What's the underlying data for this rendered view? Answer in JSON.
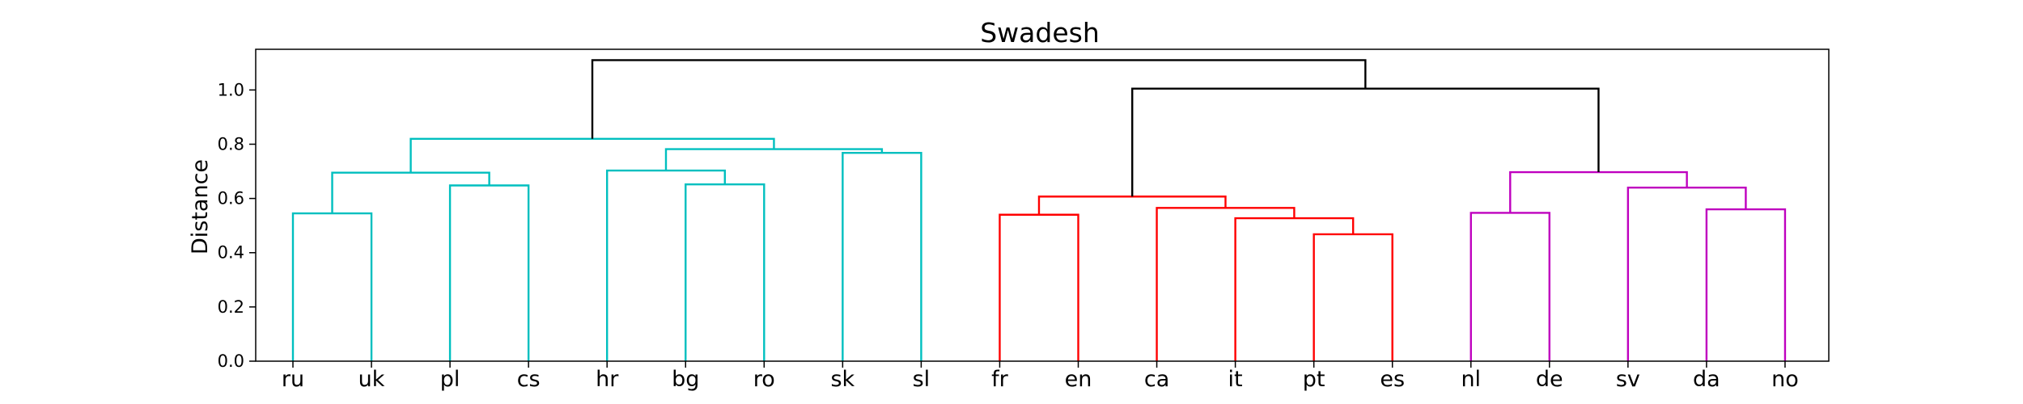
{
  "chart_data": {
    "type": "dendrogram",
    "title": "Swadesh",
    "xlabel": "",
    "ylabel": "Distance",
    "ylim": [
      0,
      1.15
    ],
    "yticks": [
      0.0,
      0.2,
      0.4,
      0.6,
      0.8,
      1.0
    ],
    "ytick_labels": [
      "0.0",
      "0.2",
      "0.4",
      "0.6",
      "0.8",
      "1.0"
    ],
    "grid": false,
    "legend": "none",
    "leaves": [
      "ru",
      "uk",
      "pl",
      "cs",
      "hr",
      "bg",
      "ro",
      "sk",
      "sl",
      "fr",
      "en",
      "ca",
      "it",
      "pt",
      "es",
      "nl",
      "de",
      "sv",
      "da",
      "no"
    ],
    "colors": {
      "cyan": "#00bfbf",
      "red": "#ff0000",
      "magenta": "#bf00bf",
      "black": "#000000"
    },
    "merges": [
      {
        "left": "ru",
        "right": "uk",
        "height": 0.545,
        "color": "cyan",
        "id": "c1"
      },
      {
        "left": "pl",
        "right": "cs",
        "height": 0.648,
        "color": "cyan",
        "id": "c2"
      },
      {
        "left": "c1",
        "right": "c2",
        "height": 0.695,
        "color": "cyan",
        "id": "c3"
      },
      {
        "left": "bg",
        "right": "ro",
        "height": 0.652,
        "color": "cyan",
        "id": "c4"
      },
      {
        "left": "hr",
        "right": "c4",
        "height": 0.703,
        "color": "cyan",
        "id": "c5"
      },
      {
        "left": "sk",
        "right": "sl",
        "height": 0.768,
        "color": "cyan",
        "id": "c6"
      },
      {
        "left": "c5",
        "right": "c6",
        "height": 0.782,
        "color": "cyan",
        "id": "c7"
      },
      {
        "left": "c3",
        "right": "c7",
        "height": 0.82,
        "color": "cyan",
        "id": "c8"
      },
      {
        "left": "fr",
        "right": "en",
        "height": 0.54,
        "color": "red",
        "id": "r1"
      },
      {
        "left": "pt",
        "right": "es",
        "height": 0.468,
        "color": "red",
        "id": "r2"
      },
      {
        "left": "it",
        "right": "r2",
        "height": 0.527,
        "color": "red",
        "id": "r3"
      },
      {
        "left": "ca",
        "right": "r3",
        "height": 0.565,
        "color": "red",
        "id": "r4"
      },
      {
        "left": "r1",
        "right": "r4",
        "height": 0.607,
        "color": "red",
        "id": "r5"
      },
      {
        "left": "nl",
        "right": "de",
        "height": 0.547,
        "color": "magenta",
        "id": "m1"
      },
      {
        "left": "da",
        "right": "no",
        "height": 0.56,
        "color": "magenta",
        "id": "m2"
      },
      {
        "left": "sv",
        "right": "m2",
        "height": 0.64,
        "color": "magenta",
        "id": "m3"
      },
      {
        "left": "m1",
        "right": "m3",
        "height": 0.697,
        "color": "magenta",
        "id": "m4"
      },
      {
        "left": "r5",
        "right": "m4",
        "height": 1.005,
        "color": "black",
        "id": "b1"
      },
      {
        "left": "c8",
        "right": "b1",
        "height": 1.11,
        "color": "black",
        "id": "b2"
      }
    ]
  }
}
